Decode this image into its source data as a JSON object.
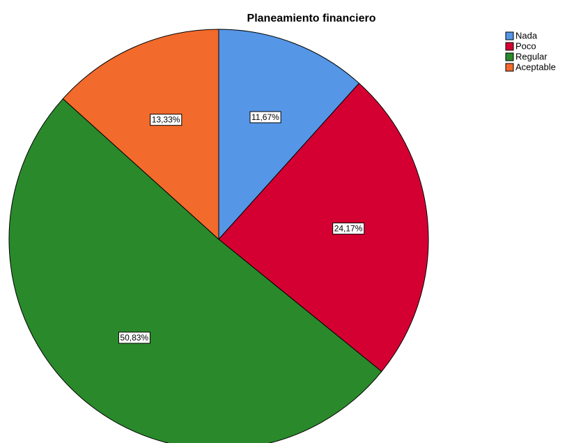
{
  "chart_data": {
    "type": "pie",
    "title": "Planeamiento financiero",
    "categories": [
      "Nada",
      "Poco",
      "Regular",
      "Aceptable"
    ],
    "values": [
      11.67,
      24.17,
      50.83,
      13.33
    ],
    "value_labels": [
      "11,67%",
      "24,17%",
      "50,83%",
      "13,33%"
    ],
    "colors": [
      "#5596e6",
      "#d50032",
      "#2a8a2b",
      "#f26a2c"
    ],
    "legend": "top-right"
  }
}
